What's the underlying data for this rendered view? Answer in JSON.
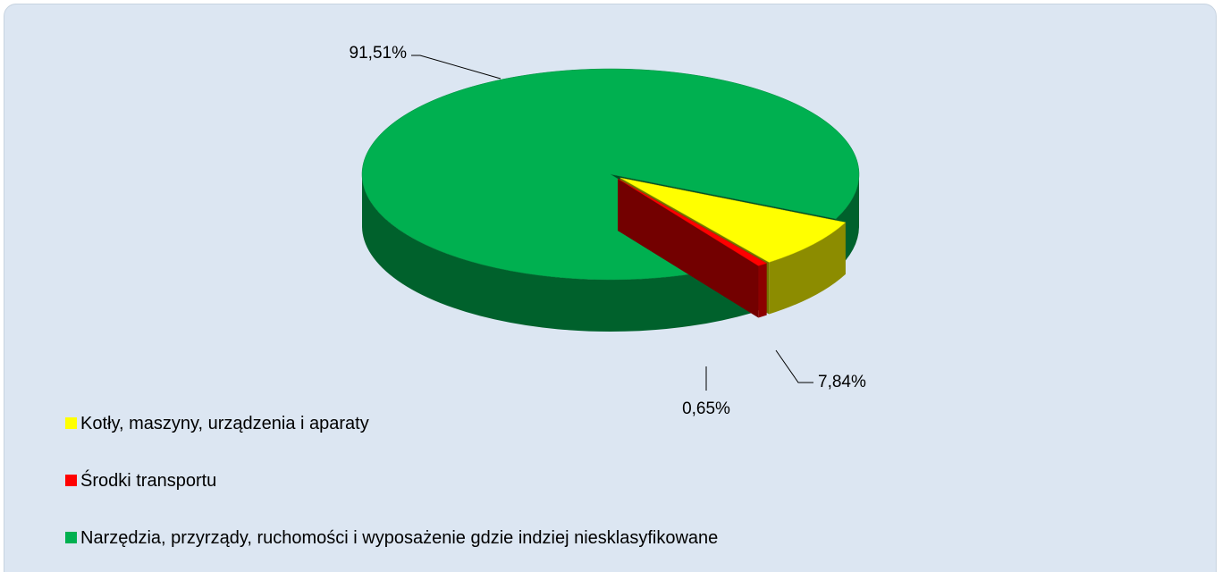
{
  "chart_data": {
    "type": "pie",
    "categories": [
      "Kotły, maszyny, urządzenia i aparaty",
      "Środki transportu",
      "Narzędzia, przyrządy, ruchomości i wyposażenie gdzie indziej niesklasyfikowane"
    ],
    "values": [
      7.84,
      0.65,
      91.51
    ],
    "value_labels": [
      "7,84%",
      "0,65%",
      "91,51%"
    ],
    "colors": [
      "#ffff00",
      "#ff0000",
      "#00b050"
    ],
    "legend": "bottom-left"
  }
}
